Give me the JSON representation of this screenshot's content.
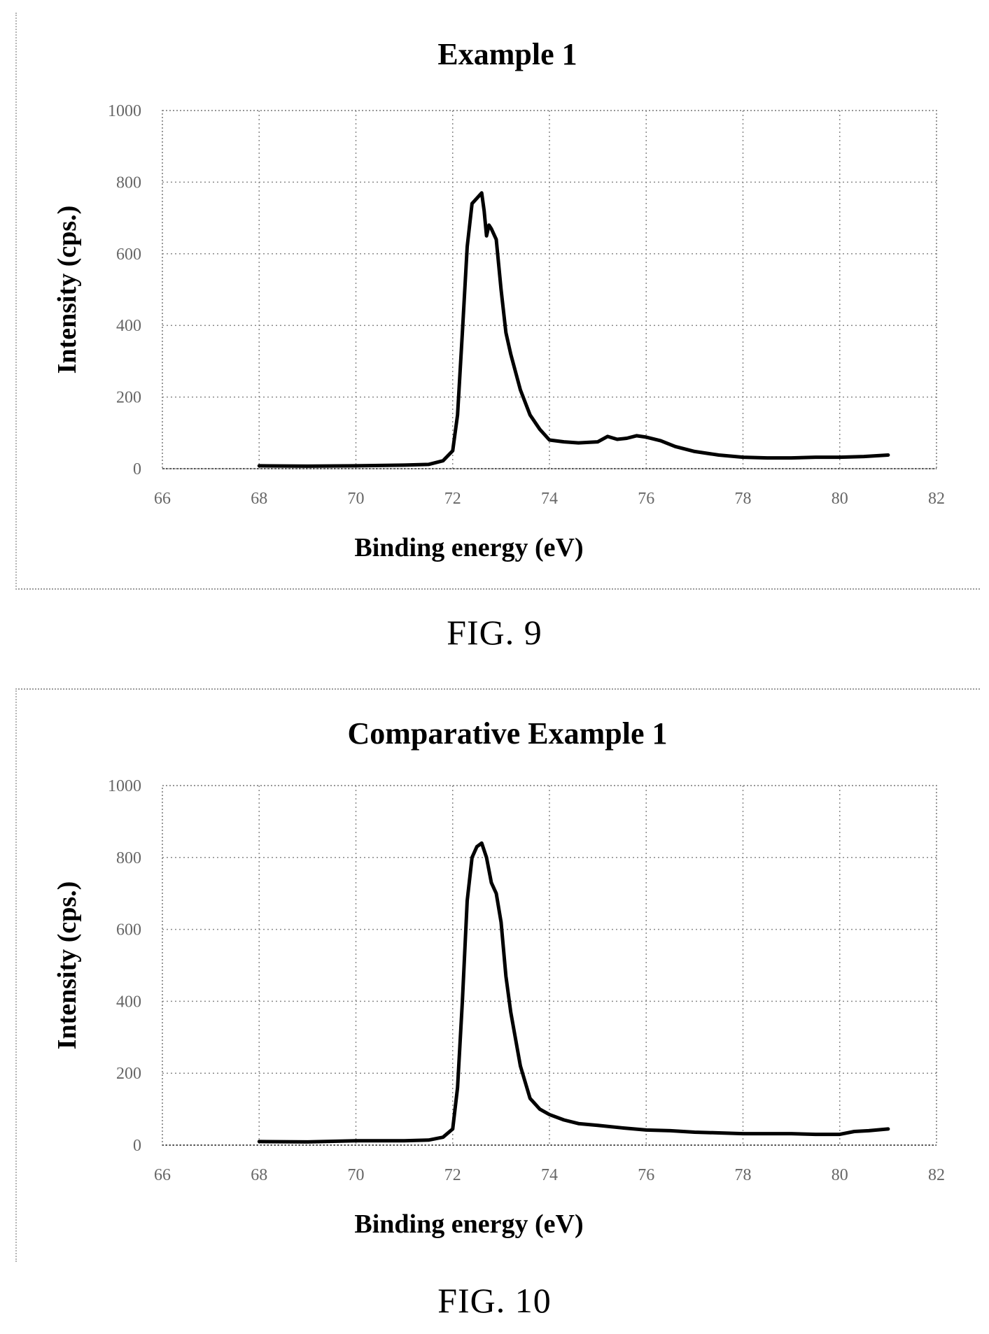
{
  "figures": [
    {
      "caption": "FIG. 9"
    },
    {
      "caption": "FIG. 10"
    }
  ],
  "chart_data": [
    {
      "type": "line",
      "title": "Example 1",
      "xlabel": "Binding energy (eV)",
      "ylabel": "Intensity (cps.)",
      "xlim": [
        66,
        82
      ],
      "ylim": [
        0,
        1000
      ],
      "xticks": [
        66,
        68,
        70,
        72,
        74,
        76,
        78,
        80,
        82
      ],
      "yticks": [
        0,
        200,
        400,
        600,
        800,
        1000
      ],
      "grid": true,
      "legend": "none",
      "series": [
        {
          "color": "#000000",
          "x": [
            68.0,
            69.0,
            70.0,
            71.0,
            71.5,
            71.8,
            72.0,
            72.1,
            72.2,
            72.3,
            72.4,
            72.5,
            72.6,
            72.65,
            72.7,
            72.75,
            72.8,
            72.9,
            73.0,
            73.1,
            73.2,
            73.4,
            73.6,
            73.8,
            74.0,
            74.3,
            74.6,
            75.0,
            75.2,
            75.4,
            75.6,
            75.8,
            76.0,
            76.3,
            76.6,
            77.0,
            77.5,
            78.0,
            78.5,
            79.0,
            79.5,
            80.0,
            80.5,
            81.0
          ],
          "y": [
            8,
            7,
            8,
            10,
            12,
            22,
            50,
            150,
            380,
            620,
            740,
            755,
            770,
            720,
            650,
            680,
            670,
            640,
            500,
            380,
            320,
            220,
            150,
            110,
            80,
            75,
            72,
            75,
            90,
            82,
            85,
            92,
            88,
            78,
            62,
            48,
            38,
            32,
            30,
            30,
            32,
            32,
            34,
            38
          ]
        }
      ]
    },
    {
      "type": "line",
      "title": "Comparative Example 1",
      "xlabel": "Binding energy (eV)",
      "ylabel": "Intensity (cps.)",
      "xlim": [
        66,
        82
      ],
      "ylim": [
        0,
        1000
      ],
      "xticks": [
        66,
        68,
        70,
        72,
        74,
        76,
        78,
        80,
        82
      ],
      "yticks": [
        0,
        200,
        400,
        600,
        800,
        1000
      ],
      "grid": true,
      "legend": "none",
      "series": [
        {
          "color": "#000000",
          "x": [
            68.0,
            69.0,
            70.0,
            71.0,
            71.5,
            71.8,
            72.0,
            72.1,
            72.2,
            72.3,
            72.4,
            72.5,
            72.6,
            72.7,
            72.8,
            72.9,
            73.0,
            73.1,
            73.2,
            73.4,
            73.6,
            73.8,
            74.0,
            74.3,
            74.6,
            75.0,
            75.5,
            76.0,
            76.5,
            77.0,
            77.5,
            78.0,
            78.5,
            79.0,
            79.5,
            80.0,
            80.3,
            80.6,
            81.0
          ],
          "y": [
            10,
            9,
            12,
            12,
            14,
            22,
            45,
            160,
            400,
            680,
            800,
            830,
            840,
            800,
            730,
            700,
            620,
            470,
            370,
            220,
            130,
            100,
            85,
            70,
            60,
            55,
            48,
            42,
            40,
            36,
            34,
            32,
            32,
            32,
            30,
            30,
            38,
            40,
            45
          ]
        }
      ]
    }
  ]
}
